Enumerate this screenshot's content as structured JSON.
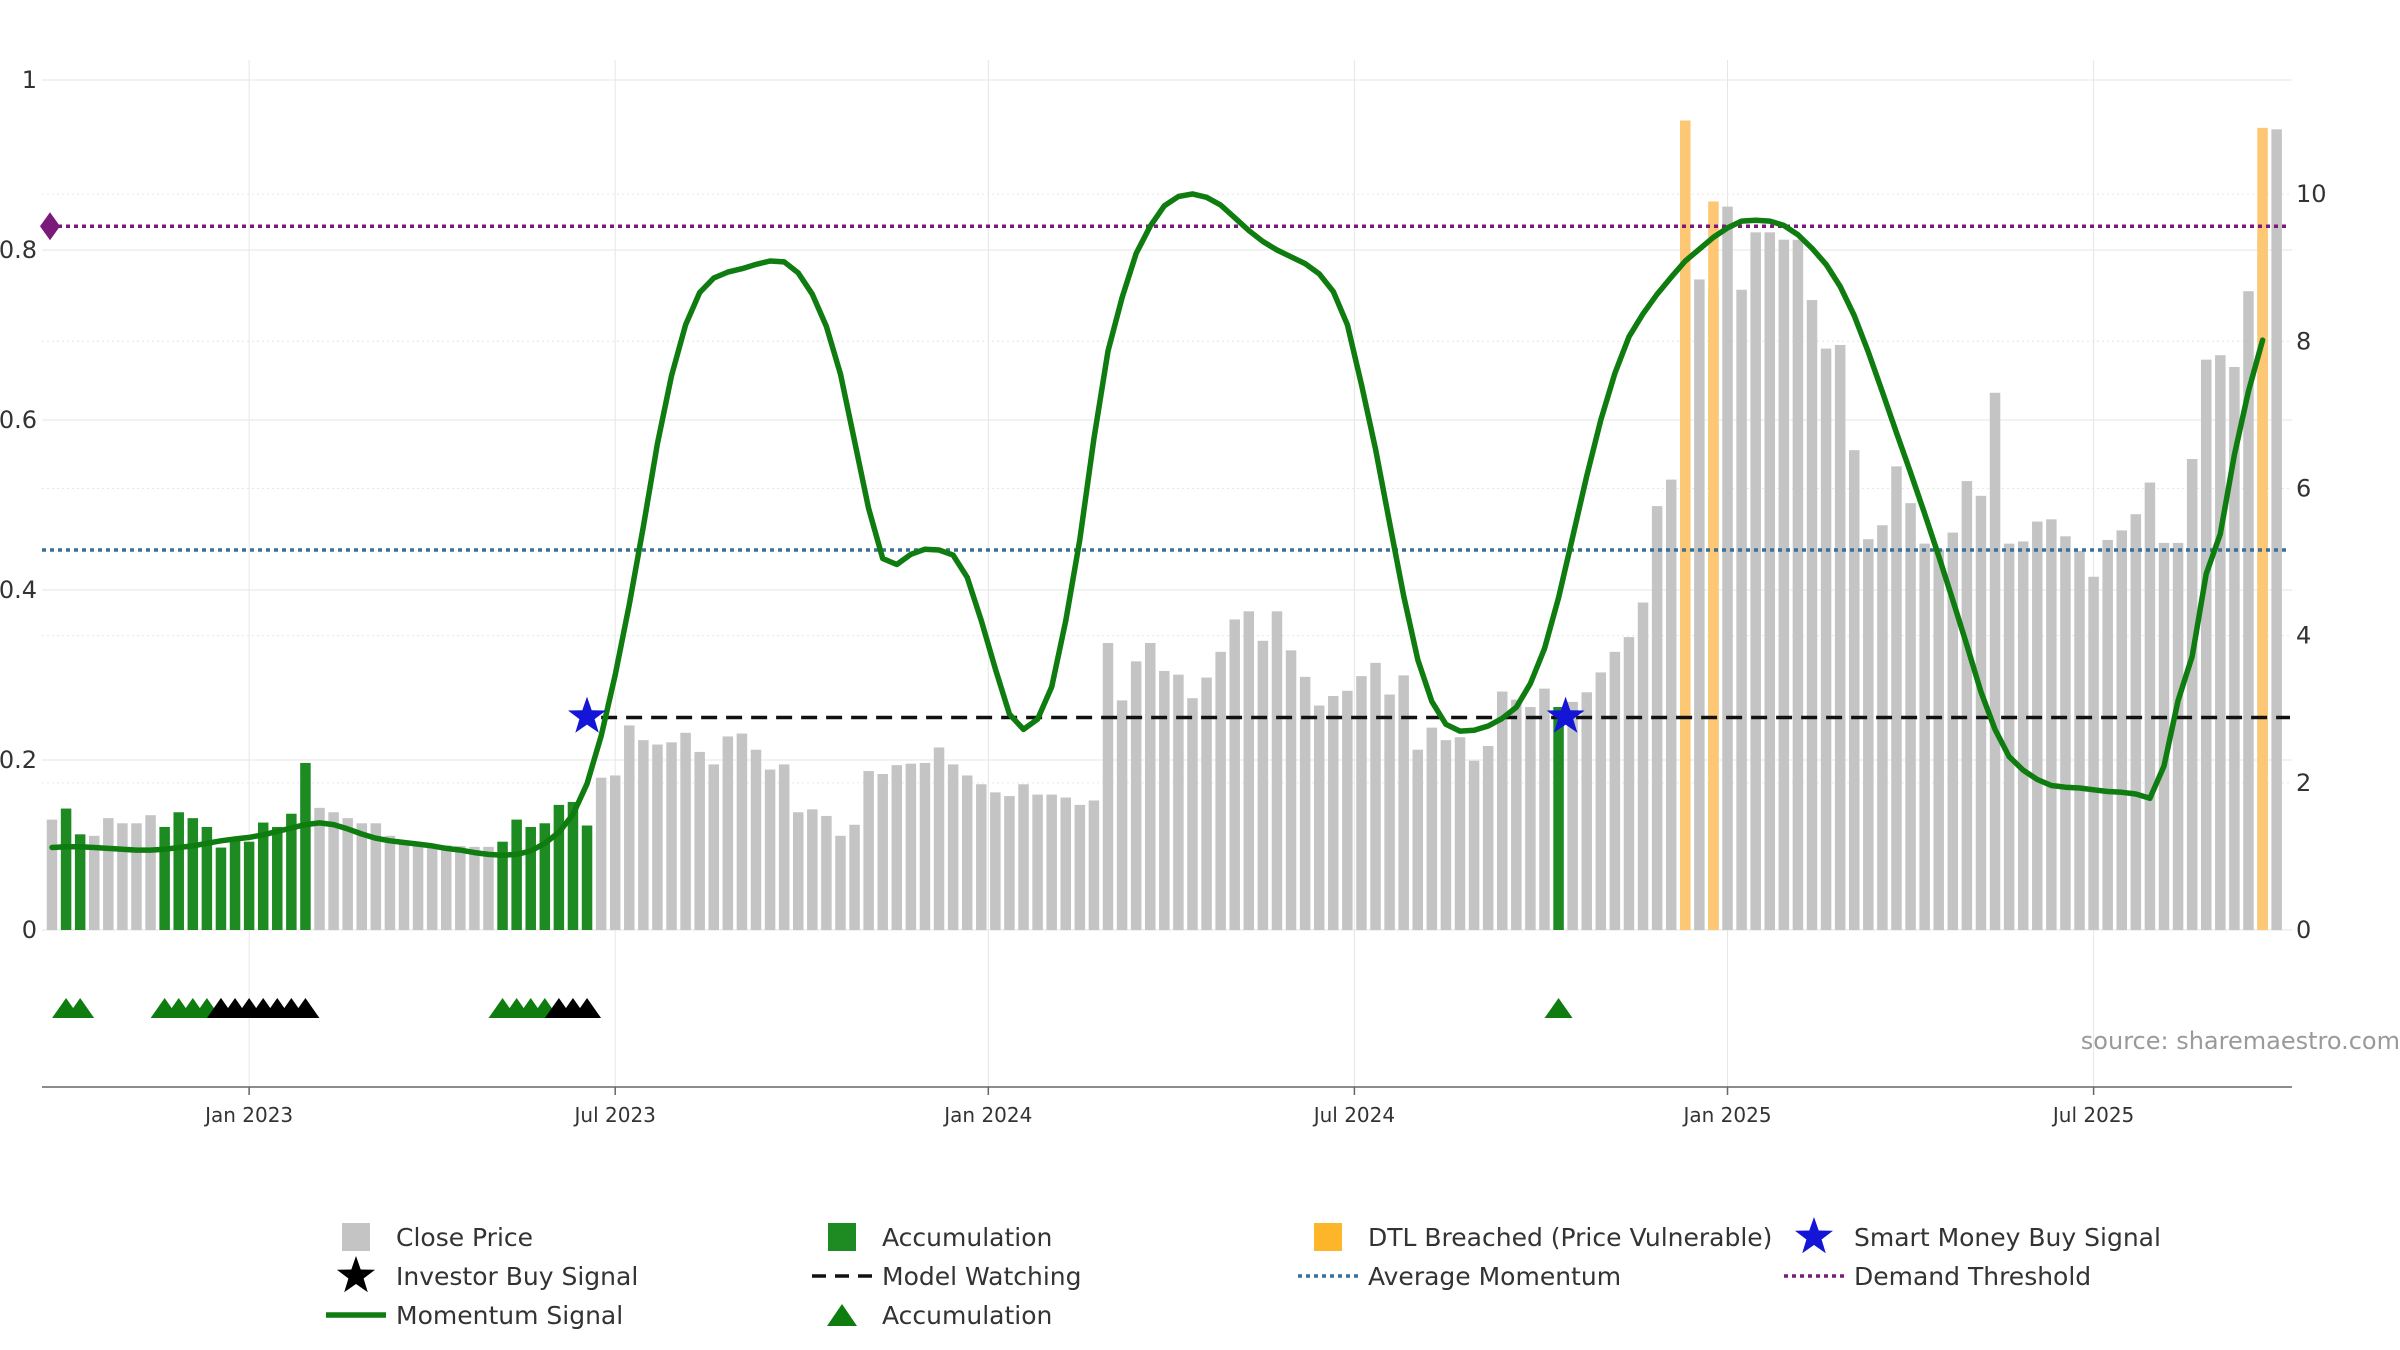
{
  "chart_data": {
    "type": "bar",
    "source_note": "source: sharemaestro.com",
    "x_ticks": [
      {
        "label": "Jan 2023",
        "week": 14
      },
      {
        "label": "Jul 2023",
        "week": 40
      },
      {
        "label": "Jan 2024",
        "week": 66.5
      },
      {
        "label": "Jul 2024",
        "week": 92.5
      },
      {
        "label": "Jan 2025",
        "week": 119
      },
      {
        "label": "Jul 2025",
        "week": 145
      }
    ],
    "left_axis": {
      "ylim": [
        0,
        1
      ],
      "ticks": [
        "0",
        "0.2",
        "0.4",
        "0.6",
        "0.8",
        "1"
      ],
      "tick_values": [
        0,
        0.2,
        0.4,
        0.6,
        0.8,
        1.0
      ]
    },
    "right_axis": {
      "ylim": [
        0,
        11.55
      ],
      "ticks": [
        "0",
        "2",
        "4",
        "6",
        "8",
        "10"
      ],
      "tick_values": [
        0,
        2,
        4,
        6,
        8,
        10
      ]
    },
    "series": {
      "close_price": [
        1.5,
        1.65,
        1.3,
        1.28,
        1.52,
        1.45,
        1.45,
        1.56,
        1.4,
        1.6,
        1.52,
        1.4,
        1.12,
        1.22,
        1.2,
        1.46,
        1.4,
        1.58,
        2.27,
        1.66,
        1.6,
        1.52,
        1.45,
        1.45,
        1.28,
        1.2,
        1.18,
        1.17,
        1.15,
        1.14,
        1.13,
        1.13,
        1.2,
        1.5,
        1.4,
        1.45,
        1.7,
        1.74,
        1.42,
        2.07,
        2.1,
        2.78,
        2.58,
        2.52,
        2.55,
        2.68,
        2.42,
        2.25,
        2.63,
        2.67,
        2.45,
        2.18,
        2.25,
        1.6,
        1.64,
        1.55,
        1.28,
        1.43,
        2.16,
        2.12,
        2.24,
        2.26,
        2.27,
        2.48,
        2.25,
        2.1,
        1.98,
        1.87,
        1.82,
        1.98,
        1.84,
        1.84,
        1.8,
        1.7,
        1.76,
        3.9,
        3.12,
        3.65,
        3.9,
        3.52,
        3.47,
        3.15,
        3.43,
        3.78,
        4.22,
        4.33,
        3.93,
        4.33,
        3.8,
        3.44,
        3.05,
        3.18,
        3.25,
        3.45,
        3.63,
        3.2,
        3.46,
        2.45,
        2.75,
        2.58,
        2.62,
        2.3,
        2.5,
        3.24,
        3.13,
        3.03,
        3.28,
        3.03,
        3.1,
        3.23,
        3.5,
        3.78,
        3.98,
        4.45,
        5.76,
        6.12,
        8.88,
        8.84,
        8.7,
        9.83,
        8.7,
        9.48,
        9.48,
        9.38,
        9.38,
        8.56,
        7.9,
        7.95,
        6.52,
        5.31,
        5.5,
        6.3,
        5.8,
        5.25,
        5.17,
        5.4,
        6.1,
        5.9,
        7.3,
        5.25,
        5.28,
        5.55,
        5.58,
        5.35,
        5.15,
        4.8,
        5.3,
        5.43,
        5.65,
        6.08,
        5.26,
        5.26,
        6.4,
        7.75,
        7.81,
        7.65,
        8.68,
        9.46,
        10.88
      ],
      "accumulation_indices": [
        1,
        2,
        8,
        9,
        10,
        11,
        12,
        13,
        14,
        15,
        16,
        17,
        18,
        32,
        33,
        34,
        35,
        36,
        37,
        38,
        107
      ],
      "dtl_breached": [
        {
          "week": 116,
          "value": 11.0
        },
        {
          "week": 118,
          "value": 9.9
        },
        {
          "week": 157,
          "value": 10.9
        }
      ],
      "momentum": [
        0.097,
        0.098,
        0.098,
        0.097,
        0.096,
        0.095,
        0.094,
        0.094,
        0.095,
        0.097,
        0.099,
        0.102,
        0.105,
        0.107,
        0.109,
        0.112,
        0.116,
        0.12,
        0.124,
        0.126,
        0.124,
        0.119,
        0.113,
        0.108,
        0.105,
        0.103,
        0.101,
        0.099,
        0.096,
        0.094,
        0.091,
        0.089,
        0.088,
        0.089,
        0.093,
        0.102,
        0.115,
        0.136,
        0.172,
        0.228,
        0.3,
        0.383,
        0.475,
        0.572,
        0.652,
        0.712,
        0.75,
        0.767,
        0.774,
        0.778,
        0.783,
        0.787,
        0.786,
        0.773,
        0.748,
        0.71,
        0.654,
        0.575,
        0.496,
        0.437,
        0.43,
        0.442,
        0.448,
        0.447,
        0.441,
        0.415,
        0.364,
        0.307,
        0.254,
        0.236,
        0.248,
        0.286,
        0.364,
        0.459,
        0.578,
        0.681,
        0.744,
        0.796,
        0.828,
        0.852,
        0.863,
        0.866,
        0.862,
        0.853,
        0.838,
        0.823,
        0.81,
        0.8,
        0.792,
        0.784,
        0.772,
        0.751,
        0.712,
        0.642,
        0.566,
        0.479,
        0.393,
        0.318,
        0.269,
        0.242,
        0.234,
        0.235,
        0.24,
        0.249,
        0.262,
        0.29,
        0.331,
        0.391,
        0.462,
        0.534,
        0.6,
        0.655,
        0.698,
        0.725,
        0.748,
        0.768,
        0.787,
        0.801,
        0.815,
        0.826,
        0.834,
        0.835,
        0.834,
        0.829,
        0.818,
        0.802,
        0.783,
        0.757,
        0.723,
        0.68,
        0.633,
        0.585,
        0.538,
        0.49,
        0.44,
        0.388,
        0.335,
        0.28,
        0.236,
        0.204,
        0.188,
        0.177,
        0.17,
        0.168,
        0.167,
        0.165,
        0.163,
        0.162,
        0.16,
        0.155,
        0.193,
        0.27,
        0.322,
        0.419,
        0.466,
        0.559,
        0.634,
        0.694
      ],
      "average_momentum": 0.447,
      "model_watching": {
        "value": 0.25,
        "start_week": 39
      },
      "demand_threshold": 0.828,
      "smart_money_signals": [
        {
          "week": 38,
          "value": 0.251
        },
        {
          "week": 107.5,
          "value": 0.251
        }
      ],
      "marker_accumulation_weeks": [
        1,
        2,
        8,
        9,
        10,
        11,
        12,
        32,
        33,
        34,
        35,
        107
      ],
      "investor_buy_weeks": [
        12,
        13,
        14,
        15,
        16,
        17,
        18,
        36,
        37,
        38
      ]
    },
    "colors": {
      "close_price": "#c4c4c4",
      "accumulation": "#1e8a22",
      "dtl": "#fdc774",
      "momentum": "#0f7c10",
      "model_watching": "#111111",
      "average_momentum": "#3a6f96",
      "demand_threshold": "#7a1a7a",
      "smart_money": "#1515d8",
      "investor": "#000000",
      "grid": "#e6e6e6",
      "axis_text": "#333333"
    },
    "legend": [
      {
        "label": "Close Price",
        "kind": "square",
        "color": "#c4c4c4"
      },
      {
        "label": "Accumulation",
        "kind": "square",
        "color": "#1e8a22"
      },
      {
        "label": "DTL Breached (Price Vulnerable)",
        "kind": "square",
        "color": "#fdb52a"
      },
      {
        "label": "Smart Money Buy Signal",
        "kind": "star",
        "color": "#1515d8"
      },
      {
        "label": "Investor Buy Signal",
        "kind": "star",
        "color": "#000000"
      },
      {
        "label": "Model Watching",
        "kind": "dash",
        "color": "#111111"
      },
      {
        "label": "Average Momentum",
        "kind": "dot-blue",
        "color": "#3a6f96"
      },
      {
        "label": "Demand Threshold",
        "kind": "dot-purple",
        "color": "#7a1a7a"
      },
      {
        "label": "Momentum Signal",
        "kind": "line",
        "color": "#0f7c10"
      },
      {
        "label": "Accumulation",
        "kind": "triangle",
        "color": "#0f7c10"
      }
    ]
  }
}
